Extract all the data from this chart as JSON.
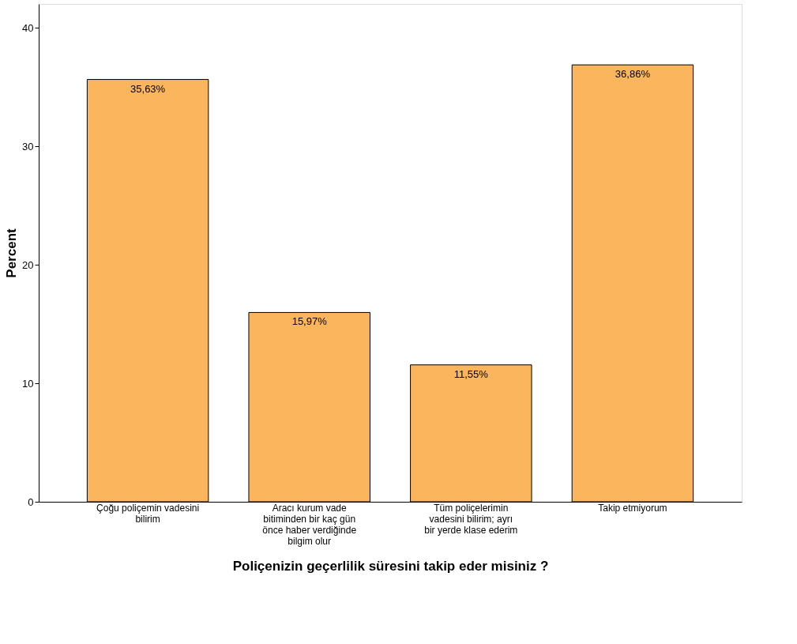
{
  "chart_data": {
    "type": "bar",
    "categories": [
      "Çoğu poliçemin vadesini bilirim",
      "Aracı kurum vade bitiminden bir kaç gün önce haber verdiğinde bilgim olur",
      "Tüm poliçelerimin vadesini bilirim; ayrı bir yerde klase ederim",
      "Takip etmiyorum"
    ],
    "values": [
      35.63,
      15.97,
      11.55,
      36.86
    ],
    "value_labels": [
      "35,63%",
      "15,97%",
      "11,55%",
      "36,86%"
    ],
    "color": "#fbb55c",
    "xlabel": "Poliçenizin geçerlilik süresini takip eder misiniz ?",
    "ylabel": "Percent",
    "ylim": [
      0,
      42
    ],
    "yticks": [
      0,
      10,
      20,
      30,
      40
    ],
    "grid": false
  }
}
